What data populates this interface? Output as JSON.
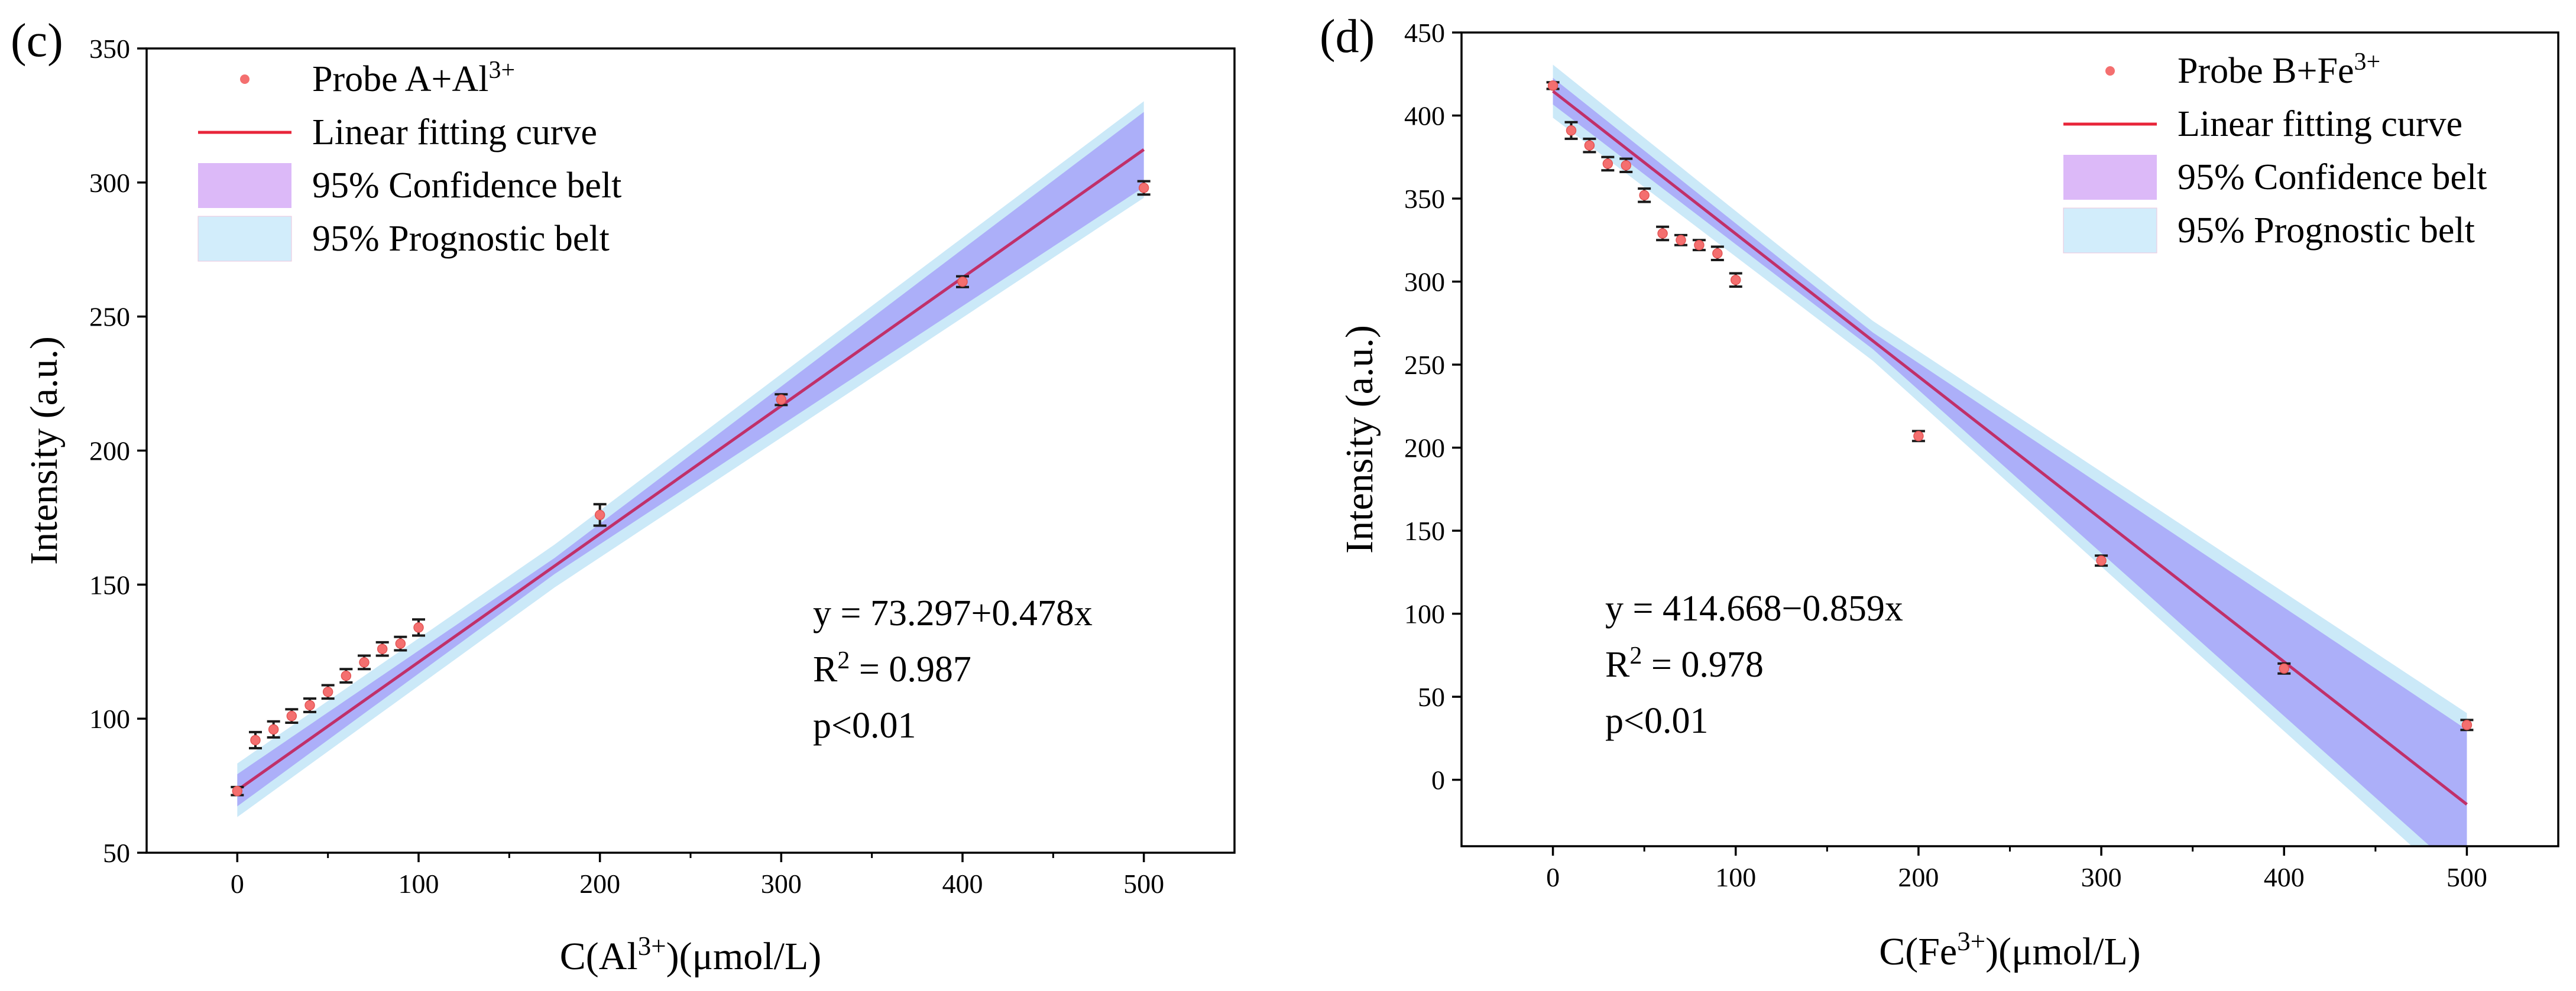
{
  "chart_data": [
    {
      "type": "scatter",
      "panel_label": "(c)",
      "xlabel": "C(Al<sup>3+</sup>)(μmol/L)",
      "ylabel": "Intensity (a.u.)",
      "xlim": [
        -50,
        550
      ],
      "ylim": [
        50,
        350
      ],
      "xticks": [
        0,
        100,
        200,
        300,
        400,
        500
      ],
      "yticks": [
        50,
        100,
        150,
        200,
        250,
        300,
        350
      ],
      "legend_position": "top-left",
      "legend": [
        {
          "key": "points",
          "label": "Probe A+Al<sup>3+</sup>"
        },
        {
          "key": "fit",
          "label": "Linear fitting curve"
        },
        {
          "key": "confidence",
          "label": "95% Confidence belt"
        },
        {
          "key": "prediction",
          "label": "95% Prognostic belt"
        }
      ],
      "series": [
        {
          "name": "Probe A+Al3+",
          "x": [
            0,
            10,
            20,
            30,
            40,
            50,
            60,
            70,
            80,
            90,
            100,
            200,
            300,
            400,
            500
          ],
          "y": [
            73,
            92,
            96,
            101,
            105,
            110,
            116,
            121,
            126,
            128,
            134,
            176,
            219,
            263,
            298
          ],
          "error": [
            1.5,
            3,
            3,
            2.5,
            2.5,
            2.5,
            2.5,
            2.5,
            2.5,
            2.5,
            3,
            4,
            2,
            2,
            2.5
          ]
        }
      ],
      "fit": {
        "intercept": 73.297,
        "slope": 0.478,
        "x_range": [
          0,
          500
        ]
      },
      "confidence_halfwidth": {
        "start": 6,
        "min": 3,
        "end": 14
      },
      "prediction_halfwidth": {
        "start": 10,
        "min": 8,
        "end": 18
      },
      "annotation": {
        "equation": "y = 73.297+0.478x",
        "r2": "R<sup>2</sup> = 0.987",
        "p": "p<0.01"
      }
    },
    {
      "type": "scatter",
      "panel_label": "(d)",
      "xlabel": "C(Fe<sup>3+</sup>)(μmol/L)",
      "ylabel": "Intensity (a.u.)",
      "xlim": [
        -50,
        550
      ],
      "ylim": [
        -40,
        450
      ],
      "xticks": [
        0,
        100,
        200,
        300,
        400,
        500
      ],
      "yticks": [
        0,
        50,
        100,
        150,
        200,
        250,
        300,
        350,
        400,
        450
      ],
      "legend_position": "top-right",
      "legend": [
        {
          "key": "points",
          "label": "Probe B+Fe<sup>3+</sup>"
        },
        {
          "key": "fit",
          "label": "Linear fitting curve"
        },
        {
          "key": "confidence",
          "label": "95% Confidence belt"
        },
        {
          "key": "prediction",
          "label": "95% Prognostic belt"
        }
      ],
      "series": [
        {
          "name": "Probe B+Fe3+",
          "x": [
            0,
            10,
            20,
            30,
            40,
            50,
            60,
            70,
            80,
            90,
            100,
            200,
            300,
            400,
            500
          ],
          "y": [
            418,
            391,
            382,
            371,
            370,
            352,
            329,
            325,
            322,
            317,
            301,
            207,
            132,
            67,
            33
          ],
          "error": [
            2,
            5,
            4,
            4,
            4,
            4,
            4,
            3,
            3,
            4,
            4,
            3,
            3,
            3,
            3
          ]
        }
      ],
      "fit": {
        "intercept": 414.668,
        "slope": -0.859,
        "x_range": [
          0,
          500
        ]
      },
      "confidence_halfwidth": {
        "start": 8,
        "min": 5,
        "end": 45
      },
      "prediction_halfwidth": {
        "start": 16,
        "min": 12,
        "end": 55
      },
      "annotation": {
        "equation": "y = 414.668−0.859x",
        "r2": "R<sup>2</sup> = 0.978",
        "p": "p<0.01"
      }
    }
  ],
  "colors": {
    "fit_line": "#e8253a",
    "confidence": "#a9a9f8",
    "prediction": "#cbe9f8",
    "legend_confidence": "#dcb9f8",
    "legend_prediction": "#d2edfb",
    "marker": "#f46f6f",
    "error_bar": "#1a1a1a"
  }
}
